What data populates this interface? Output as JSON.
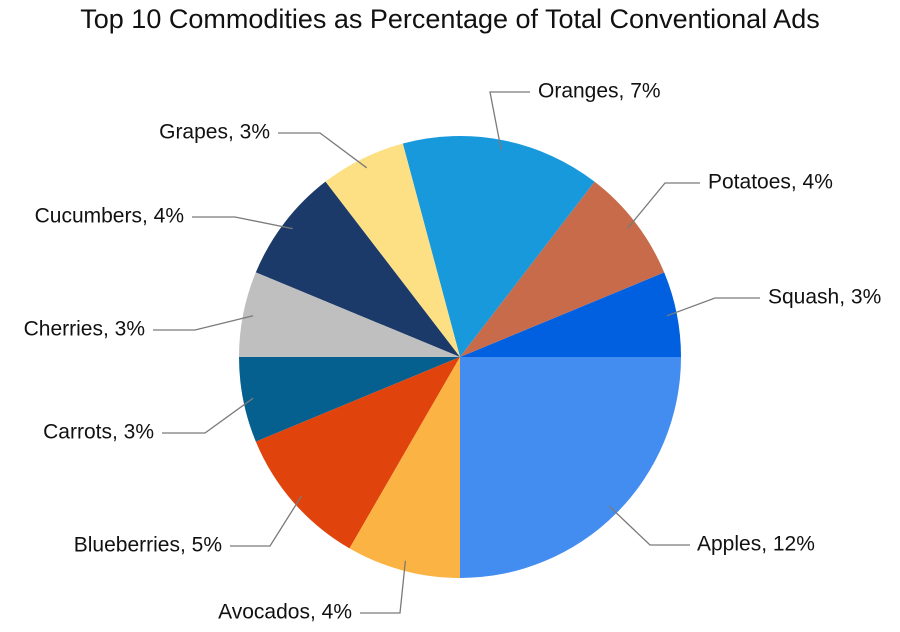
{
  "chart_data": {
    "type": "pie",
    "title": "Top 10 Commodities as Percentage of Total Conventional Ads",
    "start": "3 o'clock",
    "direction": "counterclockwise",
    "slices": [
      {
        "name": "Squash",
        "value": 3,
        "label": "Squash, 3%",
        "color": "#0160E0"
      },
      {
        "name": "Potatoes",
        "value": 4,
        "label": "Potatoes, 4%",
        "color": "#C76B4A"
      },
      {
        "name": "Oranges",
        "value": 7,
        "label": "Oranges, 7%",
        "color": "#1799DC"
      },
      {
        "name": "Grapes",
        "value": 3,
        "label": "Grapes, 3%",
        "color": "#FDE084"
      },
      {
        "name": "Cucumbers",
        "value": 4,
        "label": "Cucumbers, 4%",
        "color": "#1B3A69"
      },
      {
        "name": "Cherries",
        "value": 3,
        "label": "Cherries, 3%",
        "color": "#BFBFBF"
      },
      {
        "name": "Carrots",
        "value": 3,
        "label": "Carrots, 3%",
        "color": "#06608F"
      },
      {
        "name": "Blueberries",
        "value": 5,
        "label": "Blueberries, 5%",
        "color": "#E0430B"
      },
      {
        "name": "Avocados",
        "value": 4,
        "label": "Avocados, 4%",
        "color": "#FBB343"
      },
      {
        "name": "Apples",
        "value": 12,
        "label": "Apples, 12%",
        "color": "#438DF0"
      }
    ]
  }
}
